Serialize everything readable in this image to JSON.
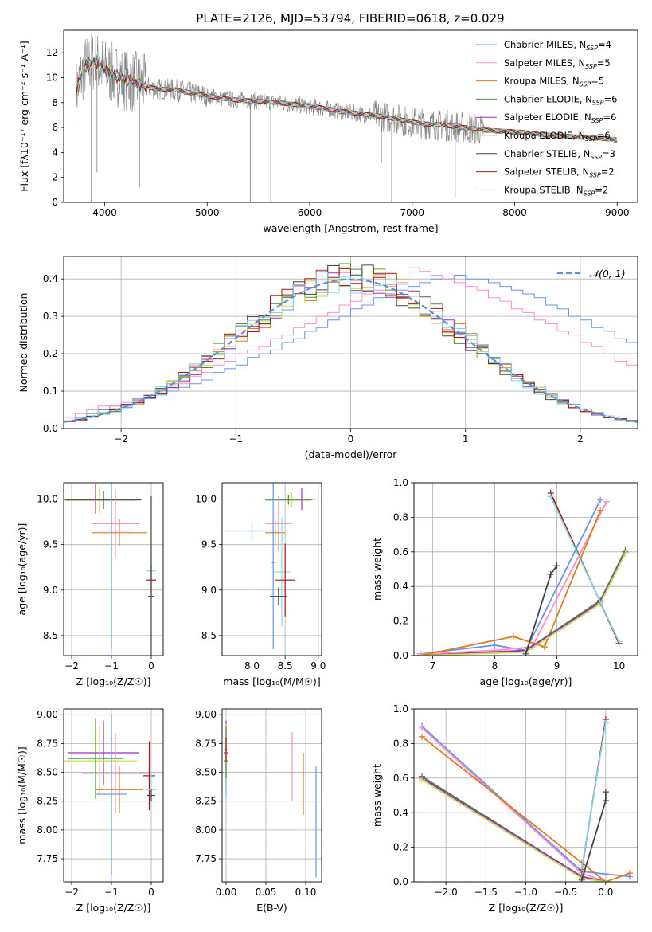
{
  "figure_title": "PLATE=2126, MJD=53794, FIBERID=0618, z=0.029",
  "colors": {
    "cornflower": "#6495ed",
    "hotpink": "#ff8ccd",
    "orange": "#e07b1a",
    "green": "#4a8f3c",
    "purple": "#9d2fc0",
    "yellowgreen": "#c8e04a",
    "darkgray": "#444444",
    "darkred": "#b01010",
    "lightcyan": "#7fd8e8",
    "gray_spectrum": "#808080",
    "grid": "#b0b0b0"
  },
  "chart_data": [
    {
      "id": "spectrum",
      "type": "line",
      "title": "PLATE=2126, MJD=53794, FIBERID=0618, z=0.029",
      "xlabel": "wavelength [Angstrom, rest frame]",
      "ylabel": "Flux [fλ10⁻¹⁷ erg cm⁻² s⁻¹ A⁻¹]",
      "xlim": [
        3600,
        9200
      ],
      "ylim": [
        0,
        13.8
      ],
      "xticks": [
        4000,
        5000,
        6000,
        7000,
        8000,
        9000
      ],
      "yticks": [
        0,
        2,
        4,
        6,
        8,
        10,
        12
      ],
      "grid": false,
      "legend_position": "top-right",
      "continuum_x": [
        3720,
        3800,
        3900,
        4000,
        4100,
        4200,
        4300,
        4400,
        4500,
        4700,
        4900,
        5100,
        5300,
        5500,
        5700,
        5900,
        6100,
        6300,
        6500,
        6700,
        6900,
        7100,
        7300,
        7500,
        7700,
        7900,
        8100,
        8300,
        8500,
        8700,
        8900,
        9000
      ],
      "continuum_y": [
        8.8,
        10.8,
        11.4,
        10.6,
        10.2,
        9.9,
        9.6,
        9.3,
        9.1,
        9.0,
        8.7,
        8.4,
        8.2,
        8.1,
        8.0,
        7.8,
        7.6,
        7.3,
        7.1,
        6.9,
        6.6,
        6.3,
        6.2,
        6.0,
        5.8,
        5.7,
        5.6,
        5.4,
        5.3,
        5.2,
        5.1,
        5.0
      ],
      "series": [
        {
          "name": "Chabrier MILES, N_SSP=4",
          "color": "#6495ed"
        },
        {
          "name": "Salpeter MILES, N_SSP=5",
          "color": "#ff8ccd"
        },
        {
          "name": "Kroupa MILES, N_SSP=5",
          "color": "#e07b1a"
        },
        {
          "name": "Chabrier ELODIE, N_SSP=6",
          "color": "#4a8f3c"
        },
        {
          "name": "Salpeter ELODIE, N_SSP=6",
          "color": "#9d2fc0"
        },
        {
          "name": "Kroupa ELODIE, N_SSP=6",
          "color": "#c8e04a"
        },
        {
          "name": "Chabrier STELIB, N_SSP=3",
          "color": "#444444"
        },
        {
          "name": "Salpeter STELIB, N_SSP=2",
          "color": "#b01010"
        },
        {
          "name": "Kroupa STELIB, N_SSP=2",
          "color": "#7fd8e8"
        }
      ],
      "legend_labels": [
        {
          "pre": "Chabrier MILES, N",
          "sub": "SSP",
          "post": "=4"
        },
        {
          "pre": "Salpeter MILES, N",
          "sub": "SSP",
          "post": "=5"
        },
        {
          "pre": "Kroupa MILES, N",
          "sub": "SSP",
          "post": "=5"
        },
        {
          "pre": "Chabrier ELODIE, N",
          "sub": "SSP",
          "post": "=6"
        },
        {
          "pre": "Salpeter ELODIE, N",
          "sub": "SSP",
          "post": "=6"
        },
        {
          "pre": "Kroupa ELODIE, N",
          "sub": "SSP",
          "post": "=6"
        },
        {
          "pre": "Chabrier STELIB, N",
          "sub": "SSP",
          "post": "=3"
        },
        {
          "pre": "Salpeter STELIB, N",
          "sub": "SSP",
          "post": "=2"
        },
        {
          "pre": "Kroupa STELIB, N",
          "sub": "SSP",
          "post": "=2"
        }
      ],
      "dips": [
        {
          "x": 3870,
          "y": 0.0
        },
        {
          "x": 3925,
          "y": 2.4
        },
        {
          "x": 4340,
          "y": 1.2
        },
        {
          "x": 5420,
          "y": 0.0
        },
        {
          "x": 5620,
          "y": 0.0
        },
        {
          "x": 6800,
          "y": 0.0
        },
        {
          "x": 7420,
          "y": 0.3
        },
        {
          "x": 6700,
          "y": 3.2
        }
      ]
    },
    {
      "id": "residual-histogram",
      "type": "bar",
      "xlabel": "(data-model)/error",
      "ylabel": "Normed distribution",
      "xlim": [
        -2.5,
        2.5
      ],
      "ylim": [
        0,
        0.46
      ],
      "xticks": [
        -2,
        -1,
        0,
        1,
        2
      ],
      "yticks": [
        0.0,
        0.1,
        0.2,
        0.3,
        0.4
      ],
      "grid": true,
      "legend_position": "top-right",
      "reference_curve": {
        "name": "𝒩(0, 1)",
        "color": "#5b8fd9",
        "style": "dashed"
      },
      "bin_edges_start": -2.5,
      "bin_width": 0.1,
      "series": [
        {
          "name": "Chabrier MILES",
          "color": "#6495ed",
          "values": [
            0.02,
            0.03,
            0.04,
            0.05,
            0.06,
            0.06,
            0.07,
            0.08,
            0.09,
            0.1,
            0.11,
            0.12,
            0.13,
            0.15,
            0.16,
            0.17,
            0.19,
            0.2,
            0.21,
            0.23,
            0.24,
            0.26,
            0.27,
            0.29,
            0.3,
            0.32,
            0.33,
            0.35,
            0.36,
            0.37,
            0.38,
            0.39,
            0.4,
            0.4,
            0.41,
            0.4,
            0.4,
            0.39,
            0.38,
            0.37,
            0.36,
            0.35,
            0.33,
            0.32,
            0.3,
            0.29,
            0.27,
            0.26,
            0.24,
            0.23
          ]
        },
        {
          "name": "Salpeter MILES",
          "color": "#ff8ccd",
          "values": [
            0.03,
            0.04,
            0.05,
            0.06,
            0.06,
            0.07,
            0.08,
            0.09,
            0.1,
            0.11,
            0.12,
            0.14,
            0.15,
            0.17,
            0.18,
            0.2,
            0.21,
            0.22,
            0.24,
            0.25,
            0.27,
            0.28,
            0.3,
            0.31,
            0.33,
            0.34,
            0.36,
            0.37,
            0.38,
            0.39,
            0.43,
            0.42,
            0.41,
            0.4,
            0.39,
            0.38,
            0.37,
            0.35,
            0.34,
            0.32,
            0.31,
            0.29,
            0.28,
            0.26,
            0.25,
            0.23,
            0.22,
            0.2,
            0.18,
            0.17
          ]
        }
      ]
    },
    {
      "id": "age-vs-z",
      "type": "scatter",
      "xlabel": "Z [log₁₀(Z/Z☉)]",
      "ylabel": "age  [log₁₀(age/yr)]",
      "xlim": [
        -2.2,
        0.3
      ],
      "ylim": [
        8.28,
        10.18
      ],
      "xticks": [
        -2,
        -1,
        0
      ],
      "yticks": [
        8.5,
        9.0,
        9.5,
        10.0
      ],
      "grid": true
    },
    {
      "id": "age-vs-mass",
      "type": "scatter",
      "xlabel": "mass [log₁₀(M/M☉)]",
      "ylabel": "",
      "xlim": [
        7.55,
        9.05
      ],
      "ylim": [
        8.28,
        10.18
      ],
      "xticks": [
        8.0,
        8.5,
        9.0
      ],
      "yticks": [
        8.5,
        9.0,
        9.5,
        10.0
      ],
      "grid": true
    },
    {
      "id": "massweight-vs-age",
      "type": "line",
      "xlabel": "age  [log₁₀(age/yr)]",
      "ylabel": "mass weight",
      "xlim": [
        6.7,
        10.3
      ],
      "ylim": [
        0,
        1.0
      ],
      "xticks": [
        7,
        8,
        9,
        10
      ],
      "yticks": [
        0.0,
        0.2,
        0.4,
        0.6,
        0.8,
        1.0
      ],
      "grid": true,
      "series": [
        {
          "name": "Chabrier MILES",
          "color": "#6495ed",
          "x": [
            6.8,
            8.0,
            8.5,
            9.7
          ],
          "y": [
            0.01,
            0.06,
            0.03,
            0.9
          ]
        },
        {
          "name": "Salpeter MILES",
          "color": "#ff8ccd",
          "x": [
            6.8,
            8.0,
            8.6,
            9.8
          ],
          "y": [
            0.01,
            0.03,
            0.05,
            0.89
          ]
        },
        {
          "name": "Kroupa MILES",
          "color": "#e07b1a",
          "x": [
            6.8,
            8.3,
            8.8,
            9.7
          ],
          "y": [
            0.0,
            0.11,
            0.05,
            0.84
          ]
        },
        {
          "name": "Chabrier ELODIE",
          "color": "#4a8f3c",
          "x": [
            6.8,
            8.5,
            9.7,
            10.1
          ],
          "y": [
            0.0,
            0.03,
            0.32,
            0.61
          ]
        },
        {
          "name": "Salpeter ELODIE",
          "color": "#9d2fc0",
          "x": [
            6.8,
            8.5,
            9.7,
            10.1
          ],
          "y": [
            0.0,
            0.03,
            0.31,
            0.6
          ]
        },
        {
          "name": "Kroupa ELODIE",
          "color": "#c8e04a",
          "x": [
            6.8,
            8.5,
            9.7,
            10.1
          ],
          "y": [
            0.0,
            0.02,
            0.3,
            0.59
          ]
        },
        {
          "name": "Chabrier STELIB",
          "color": "#444444",
          "x": [
            8.5,
            8.9,
            9.0
          ],
          "y": [
            0.01,
            0.47,
            0.52
          ]
        },
        {
          "name": "Salpeter STELIB",
          "color": "#b01010",
          "x": [
            8.9,
            10.0
          ],
          "y": [
            0.94,
            0.07
          ]
        },
        {
          "name": "Kroupa STELIB",
          "color": "#7fd8e8",
          "x": [
            8.9,
            10.0
          ],
          "y": [
            0.92,
            0.08
          ]
        }
      ]
    },
    {
      "id": "mass-vs-z",
      "type": "scatter",
      "xlabel": "Z [log₁₀(Z/Z☉)]",
      "ylabel": "mass [log₁₀(M/M☉)]",
      "xlim": [
        -2.2,
        0.3
      ],
      "ylim": [
        7.55,
        9.05
      ],
      "xticks": [
        -2,
        -1,
        0
      ],
      "yticks": [
        7.75,
        8.0,
        8.25,
        8.5,
        8.75,
        9.0
      ],
      "grid": true
    },
    {
      "id": "mass-vs-ebv",
      "type": "scatter",
      "xlabel": "E(B-V)",
      "ylabel": "",
      "xlim": [
        -0.005,
        0.12
      ],
      "ylim": [
        7.55,
        9.05
      ],
      "xticks": [
        0.0,
        0.05,
        0.1
      ],
      "yticks": [
        7.75,
        8.0,
        8.25,
        8.5,
        8.75,
        9.0
      ],
      "grid": true
    },
    {
      "id": "massweight-vs-z",
      "type": "line",
      "xlabel": "Z [log₁₀(Z/Z☉)]",
      "ylabel": "mass weight",
      "xlim": [
        -2.4,
        0.4
      ],
      "ylim": [
        0,
        1.0
      ],
      "xticks": [
        -2.0,
        -1.5,
        -1.0,
        -0.5,
        0.0
      ],
      "yticks": [
        0.0,
        0.2,
        0.4,
        0.6,
        0.8,
        1.0
      ],
      "grid": true,
      "series": [
        {
          "name": "Chabrier MILES",
          "color": "#6495ed",
          "x": [
            -2.3,
            -0.3,
            0.3
          ],
          "y": [
            0.9,
            0.06,
            0.03
          ]
        },
        {
          "name": "Salpeter MILES",
          "color": "#ff8ccd",
          "x": [
            -2.3,
            -0.3,
            0.0
          ],
          "y": [
            0.89,
            0.05,
            0.0
          ]
        },
        {
          "name": "Kroupa MILES",
          "color": "#e07b1a",
          "x": [
            -2.3,
            -0.3,
            0.0,
            0.3
          ],
          "y": [
            0.84,
            0.11,
            0.0,
            0.05
          ]
        },
        {
          "name": "Chabrier ELODIE",
          "color": "#4a8f3c",
          "x": [
            -2.3,
            -0.3,
            0.0
          ],
          "y": [
            0.61,
            0.03,
            0.0
          ]
        },
        {
          "name": "Salpeter ELODIE",
          "color": "#9d2fc0",
          "x": [
            -2.3,
            -0.3,
            0.0
          ],
          "y": [
            0.6,
            0.03,
            0.0
          ]
        },
        {
          "name": "Kroupa ELODIE",
          "color": "#c8e04a",
          "x": [
            -2.3,
            -0.3,
            0.0
          ],
          "y": [
            0.59,
            0.02,
            0.0
          ]
        },
        {
          "name": "Chabrier STELIB",
          "color": "#444444",
          "x": [
            -0.3,
            0.0,
            0.0
          ],
          "y": [
            0.01,
            0.47,
            0.52
          ]
        },
        {
          "name": "Salpeter STELIB",
          "color": "#b01010",
          "x": [
            -0.3,
            0.0
          ],
          "y": [
            0.07,
            0.94
          ]
        },
        {
          "name": "Kroupa STELIB",
          "color": "#7fd8e8",
          "x": [
            -0.3,
            0.0
          ],
          "y": [
            0.08,
            0.92
          ]
        }
      ]
    }
  ]
}
